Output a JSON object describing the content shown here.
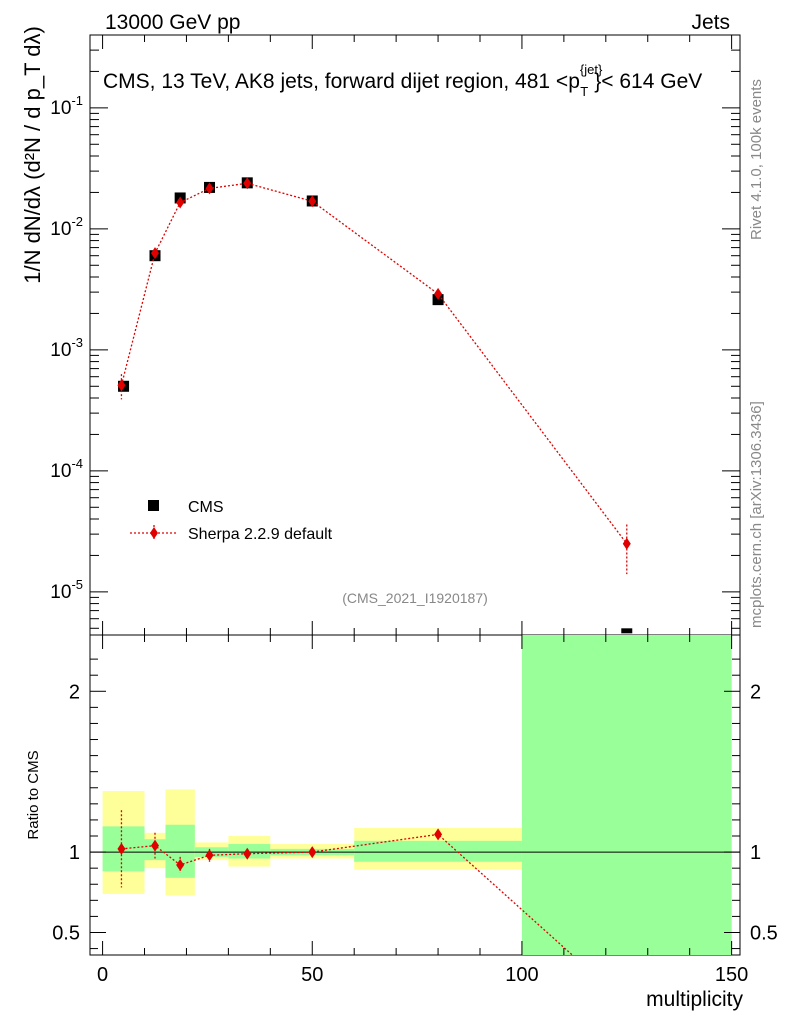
{
  "header": {
    "left": "13000 GeV pp",
    "right": "Jets"
  },
  "main_title": "CMS, 13 TeV, AK8 jets, forward dijet region, 481 <p",
  "main_title_sup": "{jet}",
  "main_title_sub": "T",
  "main_title_tail": "}< 614 GeV",
  "side_text": {
    "rivet": "Rivet 4.1.0,  100k events",
    "mcplots": "mcplots.cern.ch [arXiv:1306.3436]"
  },
  "analysis_id": "(CMS_2021_I1920187)",
  "legend": {
    "data": "CMS",
    "mc": "Sherpa 2.2.9 default"
  },
  "colors": {
    "data": "#000000",
    "mc": "#e00000",
    "band_inner": "#99ff99",
    "band_outer": "#ffff99"
  },
  "chart_data": [
    {
      "type": "scatter",
      "panel": "main",
      "ylabel": "1/N dN/dλ (d²N / d p_T dλ)",
      "log_y": true,
      "xlim": [
        -3,
        152
      ],
      "ylim": [
        4.4e-06,
        0.4
      ],
      "y_ticks": [
        "10^-5",
        "10^-4",
        "10^-3",
        "10^-2",
        "10^-1"
      ],
      "series": [
        {
          "name": "CMS",
          "x": [
            5,
            12.5,
            18.5,
            25.5,
            34.5,
            50,
            80,
            125
          ],
          "y": [
            0.0005,
            0.006,
            0.018,
            0.022,
            0.024,
            0.017,
            0.0026,
            4.5e-06
          ]
        },
        {
          "name": "Sherpa 2.2.9 default",
          "x": [
            4.5,
            12.5,
            18.5,
            25.5,
            34.5,
            50,
            80,
            125
          ],
          "y": [
            0.00051,
            0.0063,
            0.0165,
            0.0216,
            0.0238,
            0.0169,
            0.0029,
            2.5e-05
          ],
          "yerr_low": [
            0.00012,
            0.0004,
            0.0006,
            0.0005,
            0.0005,
            0.0004,
            0.0002,
            1.1e-05
          ],
          "yerr_high": [
            0.00012,
            0.0004,
            0.0006,
            0.0005,
            0.0005,
            0.0004,
            0.0002,
            1.1e-05
          ]
        }
      ]
    },
    {
      "type": "line",
      "panel": "ratio",
      "ylabel": "Ratio to CMS",
      "xlabel": "multiplicity",
      "xlim": [
        -3,
        152
      ],
      "ylim": [
        0.36,
        2.35
      ],
      "x_ticks": [
        "0",
        "50",
        "100",
        "150"
      ],
      "y_ticks": [
        "0.5",
        "1",
        "2"
      ],
      "bands": [
        {
          "x0": 0,
          "x1": 10,
          "inner": [
            0.88,
            1.16
          ],
          "outer": [
            0.74,
            1.38
          ]
        },
        {
          "x0": 10,
          "x1": 15,
          "inner": [
            0.95,
            1.08
          ],
          "outer": [
            0.9,
            1.12
          ]
        },
        {
          "x0": 15,
          "x1": 22,
          "inner": [
            0.84,
            1.17
          ],
          "outer": [
            0.73,
            1.39
          ]
        },
        {
          "x0": 22,
          "x1": 30,
          "inner": [
            0.97,
            1.03
          ],
          "outer": [
            0.95,
            1.06
          ]
        },
        {
          "x0": 30,
          "x1": 40,
          "inner": [
            0.96,
            1.05
          ],
          "outer": [
            0.91,
            1.1
          ]
        },
        {
          "x0": 40,
          "x1": 60,
          "inner": [
            0.98,
            1.02
          ],
          "outer": [
            0.96,
            1.05
          ]
        },
        {
          "x0": 60,
          "x1": 100,
          "inner": [
            0.94,
            1.07
          ],
          "outer": [
            0.89,
            1.15
          ]
        },
        {
          "x0": 100,
          "x1": 150,
          "inner": [
            0.36,
            2.35
          ],
          "outer": [
            0.36,
            2.35
          ]
        }
      ],
      "series": [
        {
          "name": "Sherpa 2.2.9 default",
          "x": [
            4.5,
            12.5,
            18.5,
            25.5,
            34.5,
            50,
            80,
            112
          ],
          "y": [
            1.02,
            1.04,
            0.92,
            0.98,
            0.99,
            1.0,
            1.11,
            0.36
          ],
          "yerr_low": [
            0.24,
            0.08,
            0.05,
            0.04,
            0.03,
            0.02,
            0.03,
            0.0
          ],
          "yerr_high": [
            0.24,
            0.08,
            0.05,
            0.04,
            0.03,
            0.02,
            0.03,
            0.0
          ]
        }
      ]
    }
  ]
}
